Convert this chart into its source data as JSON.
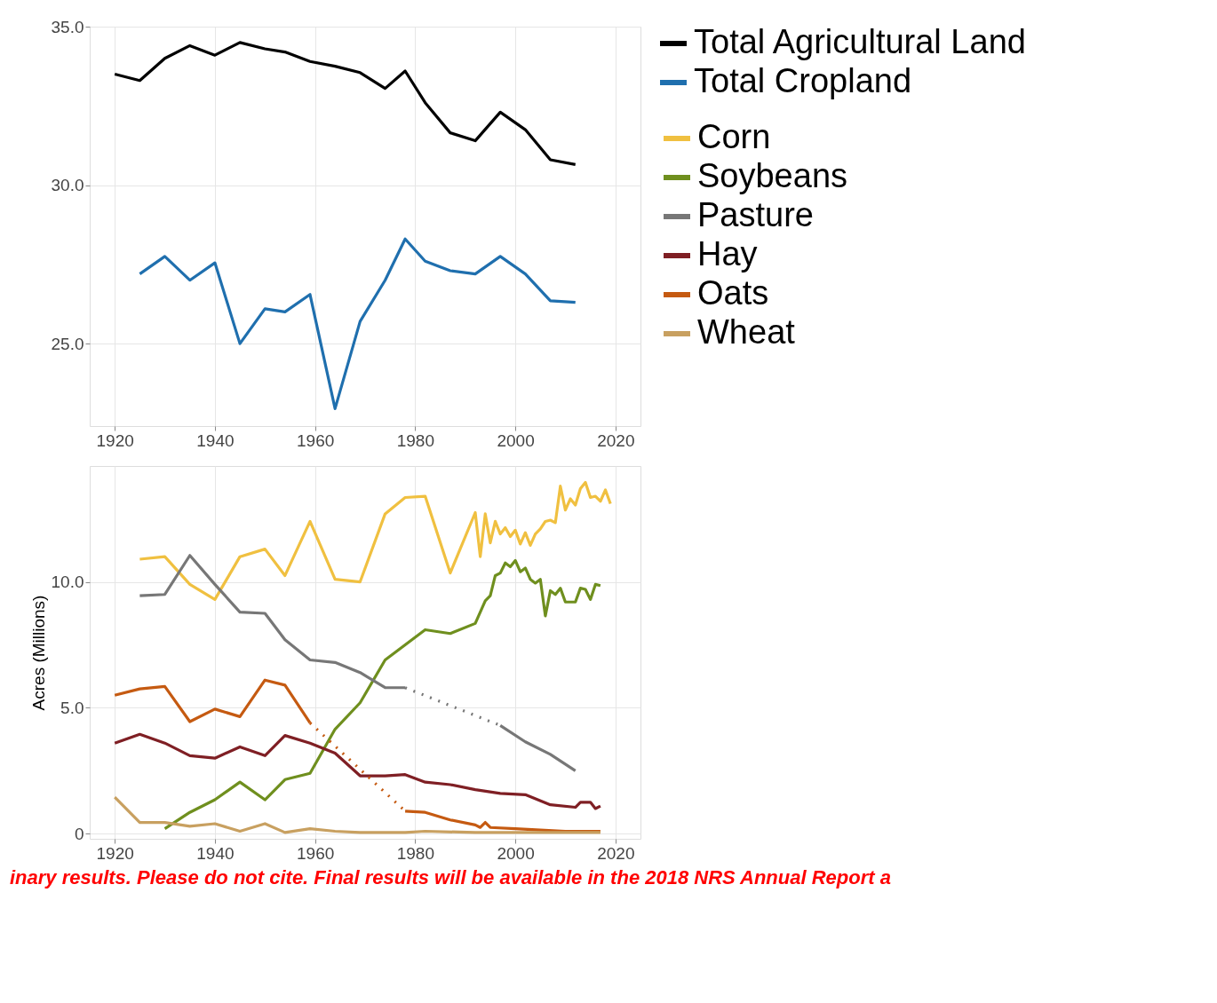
{
  "chart_data": [
    {
      "type": "line",
      "xlim": [
        1915,
        2025
      ],
      "xticks": [
        1920,
        1940,
        1960,
        1980,
        2000,
        2020
      ],
      "ylim": [
        22.4,
        35
      ],
      "yticks": [
        {
          "value": 25,
          "label": "25.0"
        },
        {
          "value": 30,
          "label": "30.0"
        },
        {
          "value": 35,
          "label": "35.0"
        }
      ],
      "grid": true,
      "legend": "right",
      "series": [
        {
          "name": "Total Agricultural Land",
          "color": "#000000",
          "x": [
            1920,
            1925,
            1930,
            1935,
            1940,
            1945,
            1950,
            1954,
            1959,
            1964,
            1969,
            1974,
            1978,
            1982,
            1987,
            1992,
            1997,
            2002,
            2007,
            2012
          ],
          "values": [
            33.5,
            33.3,
            34.0,
            34.4,
            34.1,
            34.5,
            34.3,
            34.2,
            33.9,
            33.75,
            33.55,
            33.05,
            33.6,
            32.6,
            31.65,
            31.4,
            32.3,
            31.75,
            30.8,
            30.65
          ]
        },
        {
          "name": "Total Cropland",
          "color": "#1f6fae",
          "x": [
            1925,
            1930,
            1935,
            1940,
            1945,
            1950,
            1954,
            1959,
            1964,
            1969,
            1974,
            1978,
            1982,
            1987,
            1992,
            1997,
            2002,
            2007,
            2012
          ],
          "values": [
            27.2,
            27.75,
            27.0,
            27.55,
            25.0,
            26.1,
            26.0,
            26.55,
            22.95,
            25.7,
            27.0,
            28.3,
            27.6,
            27.3,
            27.2,
            27.75,
            27.2,
            26.35,
            26.3
          ]
        }
      ]
    },
    {
      "type": "line",
      "xlim": [
        1915,
        2025
      ],
      "xticks": [
        1920,
        1940,
        1960,
        1980,
        2000,
        2020
      ],
      "ylim": [
        -0.2,
        14.6
      ],
      "yticks": [
        {
          "value": 0,
          "label": "0"
        },
        {
          "value": 5,
          "label": "5.0"
        },
        {
          "value": 10,
          "label": "10.0"
        }
      ],
      "grid": true,
      "legend": "right",
      "ylabel": "Acres (Millions)",
      "annotations": [
        "inary results. Please do not cite. Final results will be available in the 2018 NRS Annual Report a"
      ],
      "series": [
        {
          "name": "Corn",
          "color": "#f0c040",
          "x": [
            1925,
            1930,
            1935,
            1940,
            1945,
            1950,
            1954,
            1959,
            1964,
            1969,
            1974,
            1978,
            1982,
            1987,
            1992,
            1993,
            1994,
            1995,
            1996,
            1997,
            1998,
            1999,
            2000,
            2001,
            2002,
            2003,
            2004,
            2005,
            2006,
            2007,
            2008,
            2009,
            2010,
            2011,
            2012,
            2013,
            2014,
            2015,
            2016,
            2017,
            2018,
            2019
          ],
          "values": [
            10.9,
            11.0,
            9.9,
            9.3,
            11.0,
            11.3,
            10.25,
            12.4,
            10.1,
            10.0,
            12.7,
            13.35,
            13.4,
            10.35,
            12.75,
            11.0,
            12.7,
            11.55,
            12.4,
            11.9,
            12.15,
            11.8,
            12.05,
            11.5,
            11.95,
            11.45,
            11.9,
            12.1,
            12.4,
            12.45,
            12.35,
            13.8,
            12.85,
            13.3,
            13.05,
            13.7,
            13.95,
            13.35,
            13.4,
            13.2,
            13.65,
            13.1
          ]
        },
        {
          "name": "Soybeans",
          "color": "#6f8f1e",
          "x": [
            1930,
            1935,
            1940,
            1945,
            1950,
            1954,
            1959,
            1964,
            1969,
            1974,
            1978,
            1982,
            1987,
            1992,
            1993,
            1994,
            1995,
            1996,
            1997,
            1998,
            1999,
            2000,
            2001,
            2002,
            2003,
            2004,
            2005,
            2006,
            2007,
            2008,
            2009,
            2010,
            2011,
            2012,
            2013,
            2014,
            2015,
            2016,
            2017
          ],
          "values": [
            0.2,
            0.85,
            1.35,
            2.05,
            1.35,
            2.15,
            2.4,
            4.15,
            5.2,
            6.9,
            7.5,
            8.1,
            7.95,
            8.35,
            8.8,
            9.25,
            9.45,
            10.25,
            10.35,
            10.75,
            10.6,
            10.85,
            10.4,
            10.55,
            10.1,
            9.95,
            10.1,
            8.65,
            9.65,
            9.5,
            9.75,
            9.2,
            9.2,
            9.2,
            9.75,
            9.7,
            9.3,
            9.9,
            9.85
          ]
        },
        {
          "name": "Pasture",
          "color": "#777777",
          "x": [
            1925,
            1930,
            1935,
            1940,
            1945,
            1950,
            1954,
            1959,
            1964,
            1969,
            1974,
            1978
          ],
          "values": [
            9.45,
            9.5,
            11.05,
            9.9,
            8.8,
            8.75,
            7.7,
            6.9,
            6.8,
            6.4,
            5.8,
            5.8
          ]
        },
        {
          "color": "#777777",
          "line_style": "dotted",
          "x": [
            1978,
            1997
          ],
          "values": [
            5.8,
            4.3
          ]
        },
        {
          "color": "#777777",
          "x": [
            1997,
            2002,
            2007,
            2012
          ],
          "values": [
            4.3,
            3.65,
            3.15,
            2.5
          ]
        },
        {
          "name": "Hay",
          "color": "#7f1f24",
          "x": [
            1920,
            1925,
            1930,
            1935,
            1940,
            1945,
            1950,
            1954,
            1959,
            1964,
            1969,
            1974,
            1978,
            1982,
            1987,
            1992,
            1997,
            2002,
            2007,
            2012,
            2013,
            2015,
            2016,
            2017
          ],
          "values": [
            3.6,
            3.95,
            3.6,
            3.1,
            3.0,
            3.45,
            3.1,
            3.9,
            3.6,
            3.2,
            2.3,
            2.3,
            2.35,
            2.05,
            1.95,
            1.75,
            1.6,
            1.55,
            1.15,
            1.05,
            1.25,
            1.25,
            1.0,
            1.1
          ]
        },
        {
          "name": "Oats",
          "color": "#c55a11",
          "x": [
            1920,
            1925,
            1930,
            1935,
            1940,
            1945,
            1950,
            1954,
            1959
          ],
          "values": [
            5.5,
            5.75,
            5.85,
            4.45,
            4.95,
            4.65,
            6.1,
            5.9,
            4.4
          ]
        },
        {
          "color": "#c55a11",
          "line_style": "dotted",
          "x": [
            1959,
            1978
          ],
          "values": [
            4.4,
            0.9
          ]
        },
        {
          "color": "#c55a11",
          "x": [
            1978,
            1982,
            1987,
            1992,
            1993,
            1994,
            1995,
            2000,
            2005,
            2010,
            2017
          ],
          "values": [
            0.9,
            0.85,
            0.55,
            0.35,
            0.25,
            0.45,
            0.25,
            0.2,
            0.15,
            0.1,
            0.1
          ]
        },
        {
          "name": "Wheat",
          "color": "#c8a060",
          "x": [
            1920,
            1925,
            1930,
            1935,
            1940,
            1945,
            1950,
            1954,
            1959,
            1964,
            1969,
            1978,
            1982,
            1992,
            2017
          ],
          "values": [
            1.45,
            0.45,
            0.45,
            0.3,
            0.4,
            0.1,
            0.4,
            0.05,
            0.2,
            0.1,
            0.05,
            0.05,
            0.1,
            0.05,
            0.05
          ]
        }
      ]
    }
  ]
}
